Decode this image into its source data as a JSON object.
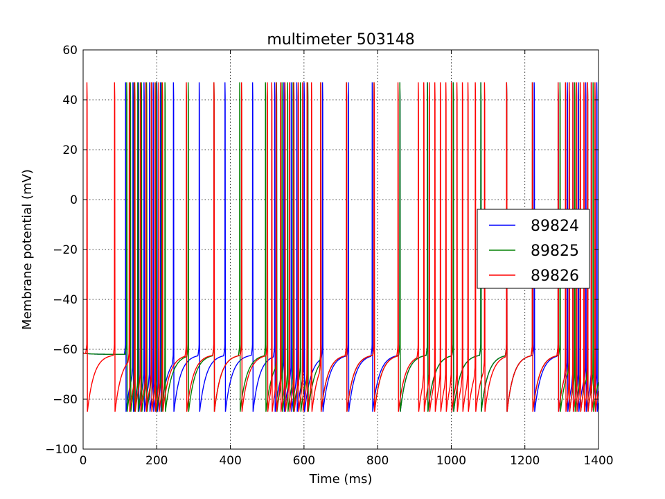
{
  "chart_data": {
    "type": "line",
    "title": "multimeter 503148",
    "xlabel": "Time (ms)",
    "ylabel": "Membrane potential (mV)",
    "xlim": [
      0,
      1400
    ],
    "ylim": [
      -100,
      60
    ],
    "x_ticks": [
      0,
      200,
      400,
      600,
      800,
      1000,
      1200,
      1400
    ],
    "y_ticks": [
      -100,
      -80,
      -60,
      -40,
      -20,
      0,
      20,
      40,
      60
    ],
    "x_tick_labels": [
      "0",
      "200",
      "400",
      "600",
      "800",
      "1000",
      "1200",
      "1400"
    ],
    "y_tick_labels": [
      "−100",
      "−80",
      "−60",
      "−40",
      "−20",
      "0",
      "20",
      "40",
      "60"
    ],
    "grid": true,
    "legend_position": "center-right",
    "resting_potential": -60,
    "spike_peak": 47,
    "reset_potential": -85,
    "series": [
      {
        "name": "89824",
        "color": "#0000ff",
        "spike_times": [
          115,
          135,
          150,
          165,
          180,
          190,
          200,
          210,
          245,
          315,
          385,
          460,
          520,
          545,
          565,
          580,
          600,
          650,
          720,
          785,
          860,
          935,
          1005,
          1080,
          1150,
          1225,
          1290,
          1315,
          1330,
          1345,
          1365,
          1380,
          1395
        ]
      },
      {
        "name": "89825",
        "color": "#008000",
        "spike_times": [
          118,
          128,
          138,
          148,
          158,
          172,
          185,
          198,
          212,
          222,
          285,
          355,
          425,
          495,
          525,
          540,
          555,
          570,
          590,
          610,
          645,
          715,
          790,
          860,
          935,
          1005,
          1080,
          1150,
          1220,
          1295,
          1320,
          1335,
          1350,
          1370,
          1385
        ]
      },
      {
        "name": "89826",
        "color": "#ff0000",
        "spike_times": [
          10,
          85,
          125,
          140,
          155,
          170,
          185,
          195,
          205,
          215,
          280,
          355,
          430,
          500,
          512,
          524,
          536,
          548,
          560,
          572,
          584,
          596,
          608,
          620,
          645,
          715,
          790,
          855,
          910,
          925,
          940,
          955,
          970,
          985,
          1000,
          1015,
          1030,
          1045,
          1065,
          1090,
          1150,
          1220,
          1290,
          1310,
          1320,
          1330,
          1340,
          1350,
          1360,
          1370,
          1380,
          1390
        ]
      }
    ]
  }
}
